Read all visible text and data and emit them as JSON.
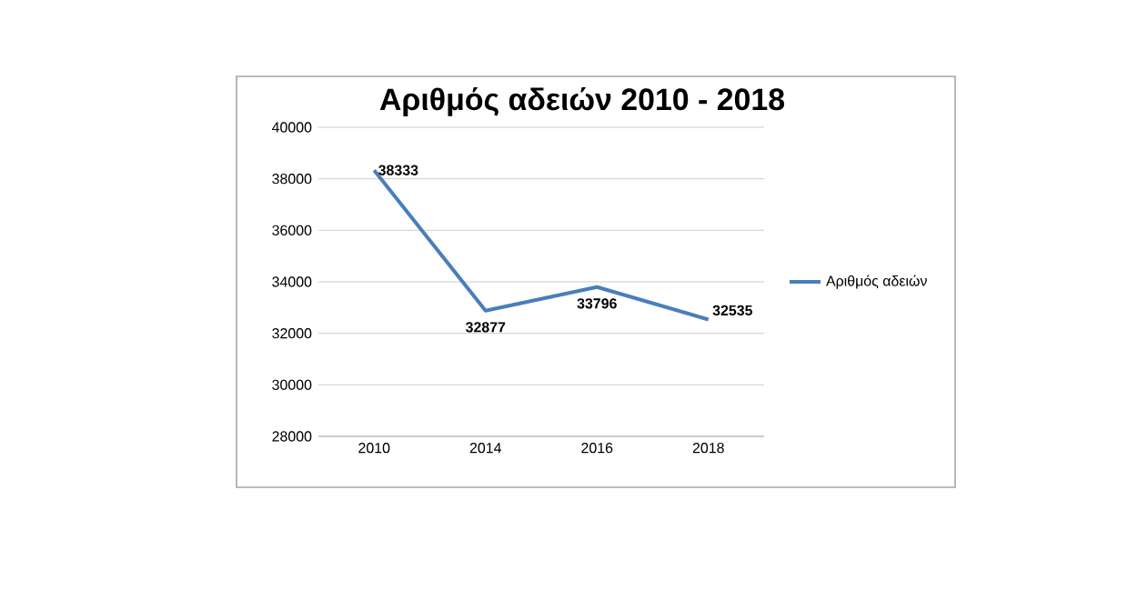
{
  "chart_data": {
    "type": "line",
    "title": "Αριθμός αδειών 2010 - 2018",
    "categories": [
      "2010",
      "2014",
      "2016",
      "2018"
    ],
    "series": [
      {
        "name": "Αριθμός αδειών",
        "color": "#4a7ebb",
        "values": [
          38333,
          32877,
          33796,
          32535
        ]
      }
    ],
    "ylim": [
      28000,
      40000
    ],
    "yticks": [
      28000,
      30000,
      32000,
      34000,
      36000,
      38000,
      40000
    ],
    "grid": "y",
    "legend": "right",
    "data_labels": true
  }
}
